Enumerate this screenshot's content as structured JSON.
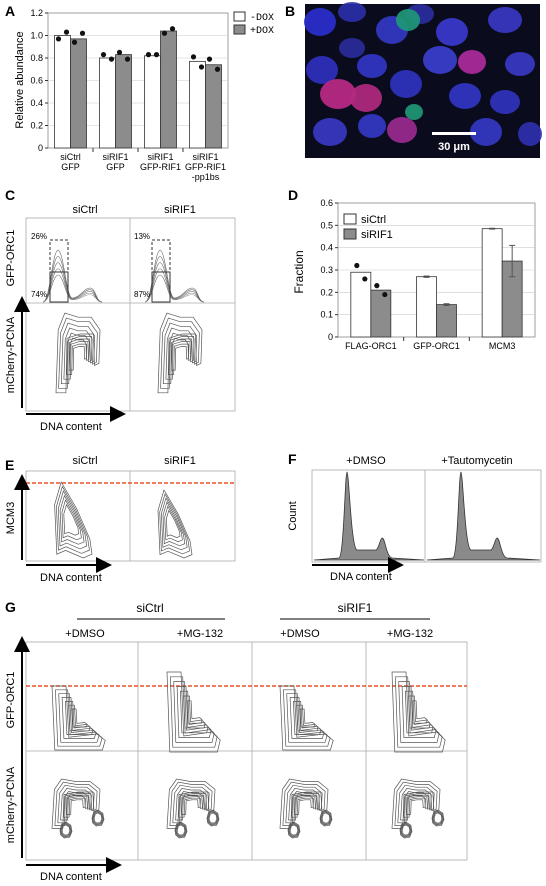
{
  "panel_letters": [
    "A",
    "B",
    "C",
    "D",
    "E",
    "F",
    "G"
  ],
  "colors": {
    "bar_light": "#ffffff",
    "bar_dark": "#8c8c8c",
    "dot": "#111111",
    "threshold": "#e8512a",
    "contour": "#555555",
    "hist_fill": "#8a8a8a",
    "micro_bg": "#0a0c1e"
  },
  "chart_data": [
    {
      "id": "A",
      "type": "bar",
      "ylabel": "Relative abundance",
      "ylim": [
        0,
        1.2
      ],
      "yticks": [
        "0",
        "0.2",
        "0.4",
        "0.6",
        "0.8",
        "1.0",
        "1.2"
      ],
      "categories": [
        [
          "siCtrl",
          "GFP"
        ],
        [
          "siRIF1",
          "GFP"
        ],
        [
          "siRIF1",
          "GFP-RIF1"
        ],
        [
          "siRIF1",
          "GFP-RIF1",
          "-pp1bs"
        ]
      ],
      "series": [
        {
          "name": "-DOX",
          "values": [
            1.0,
            0.8,
            0.82,
            0.77
          ],
          "points": [
            [
              0.97,
              1.03
            ],
            [
              0.83,
              0.79
            ],
            [
              0.83,
              0.83
            ],
            [
              0.81,
              0.72
            ]
          ]
        },
        {
          "name": "+DOX",
          "values": [
            0.97,
            0.83,
            1.04,
            0.74
          ],
          "points": [
            [
              0.94,
              1.02
            ],
            [
              0.85,
              0.79
            ],
            [
              1.02,
              1.06
            ],
            [
              0.79,
              0.7
            ]
          ]
        }
      ]
    },
    {
      "id": "D",
      "type": "bar",
      "ylabel": "Fraction",
      "ylim": [
        0,
        0.6
      ],
      "yticks": [
        "0",
        "0.1",
        "0.2",
        "0.3",
        "0.4",
        "0.5",
        "0.6"
      ],
      "categories": [
        "FLAG-ORC1",
        "GFP-ORC1",
        "MCM3"
      ],
      "series": [
        {
          "name": "siCtrl",
          "values": [
            0.29,
            0.27,
            0.485
          ],
          "points": [
            [
              0.32,
              0.26
            ],
            [],
            []
          ],
          "err": [
            0,
            0.003,
            0.002
          ]
        },
        {
          "name": "siRIF1",
          "values": [
            0.21,
            0.145,
            0.34
          ],
          "points": [
            [
              0.23,
              0.19
            ],
            [],
            []
          ],
          "err": [
            0,
            0.004,
            0.07
          ]
        }
      ]
    },
    {
      "id": "F",
      "type": "area",
      "ylabel": "Count",
      "xlabel": "DNA content",
      "series": [
        {
          "name": "+DMSO"
        },
        {
          "name": "+Tautomycetin"
        }
      ]
    }
  ],
  "panelB": {
    "scale": "30 μm"
  },
  "panelC": {
    "cols": [
      "siCtrl",
      "siRIF1"
    ],
    "gates": [
      [
        "26%",
        "74%"
      ],
      [
        "13%",
        "87%"
      ]
    ],
    "ylabel_top": "GFP-ORC1",
    "ylabel_bottom": "mCherry-PCNA",
    "xlabel": "DNA content"
  },
  "panelE": {
    "cols": [
      "siCtrl",
      "siRIF1"
    ],
    "ylabel": "MCM3",
    "xlabel": "DNA content"
  },
  "panelG": {
    "groups": [
      "siCtrl",
      "siRIF1"
    ],
    "cols": [
      "+DMSO",
      "+MG-132",
      "+DMSO",
      "+MG-132"
    ],
    "ylabel_top": "GFP-ORC1",
    "ylabel_bottom": "mCherry-PCNA",
    "xlabel": "DNA content"
  }
}
